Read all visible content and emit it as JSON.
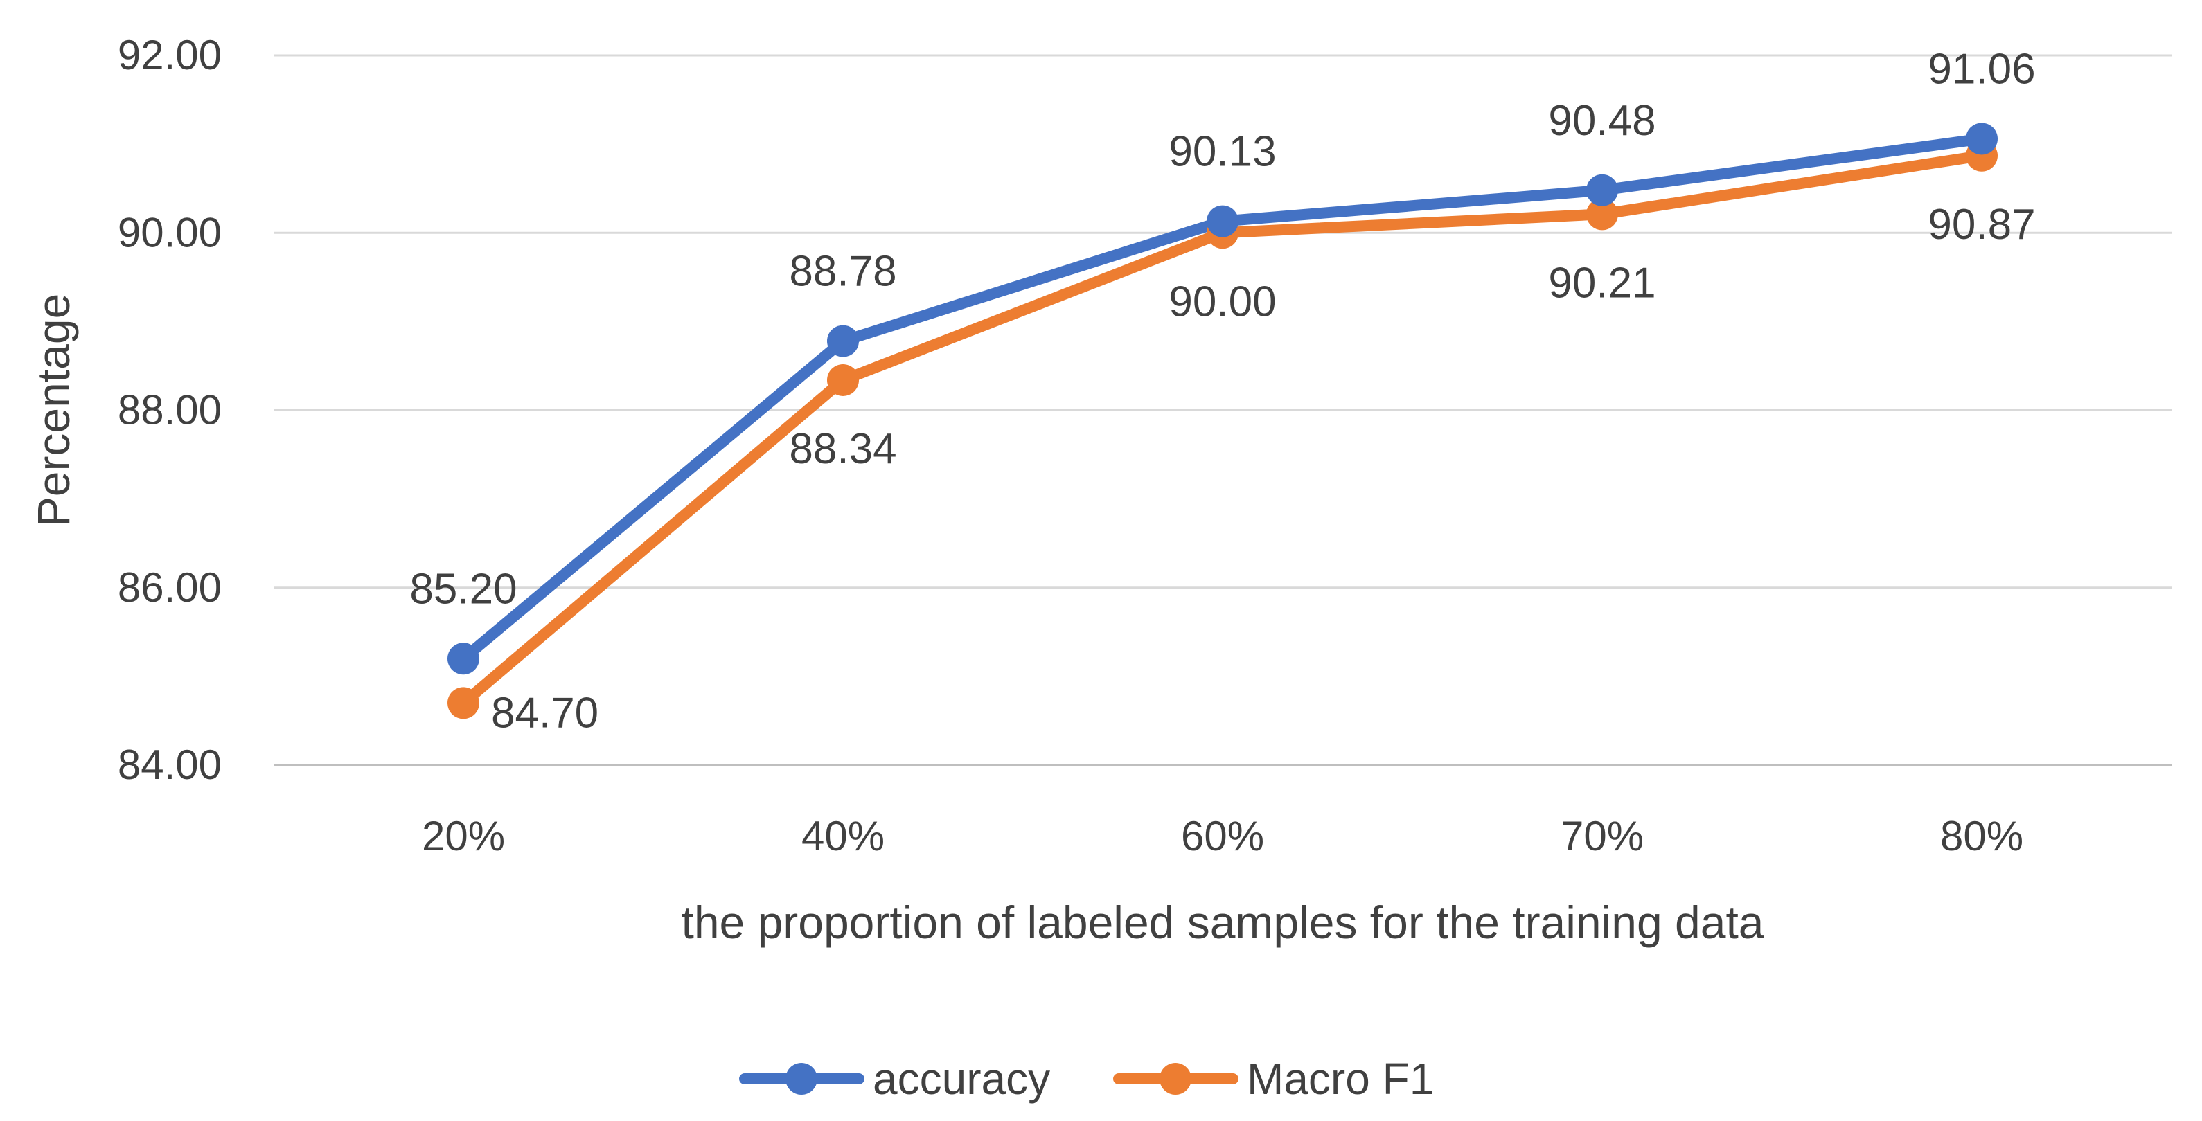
{
  "chart_data": {
    "type": "line",
    "title": "",
    "xlabel": "the proportion of labeled samples for the training data",
    "ylabel": "Percentage",
    "categories": [
      "20%",
      "40%",
      "60%",
      "70%",
      "80%"
    ],
    "ylim": [
      84.0,
      92.0
    ],
    "yticks": [
      "84.00",
      "86.00",
      "88.00",
      "90.00",
      "92.00"
    ],
    "ytick_values": [
      84,
      86,
      88,
      90,
      92
    ],
    "grid": true,
    "legend_position": "bottom",
    "series": [
      {
        "name": "accuracy",
        "color": "#4472c4",
        "values": [
          85.2,
          88.78,
          90.13,
          90.48,
          91.06
        ],
        "labels": [
          "85.20",
          "88.78",
          "90.13",
          "90.48",
          "91.06"
        ],
        "label_position": "above"
      },
      {
        "name": "Macro F1",
        "color": "#ed7d31",
        "values": [
          84.7,
          88.34,
          90.0,
          90.21,
          90.87
        ],
        "labels": [
          "84.70",
          "88.34",
          "90.00",
          "90.21",
          "90.87"
        ],
        "label_position": "below"
      }
    ]
  }
}
